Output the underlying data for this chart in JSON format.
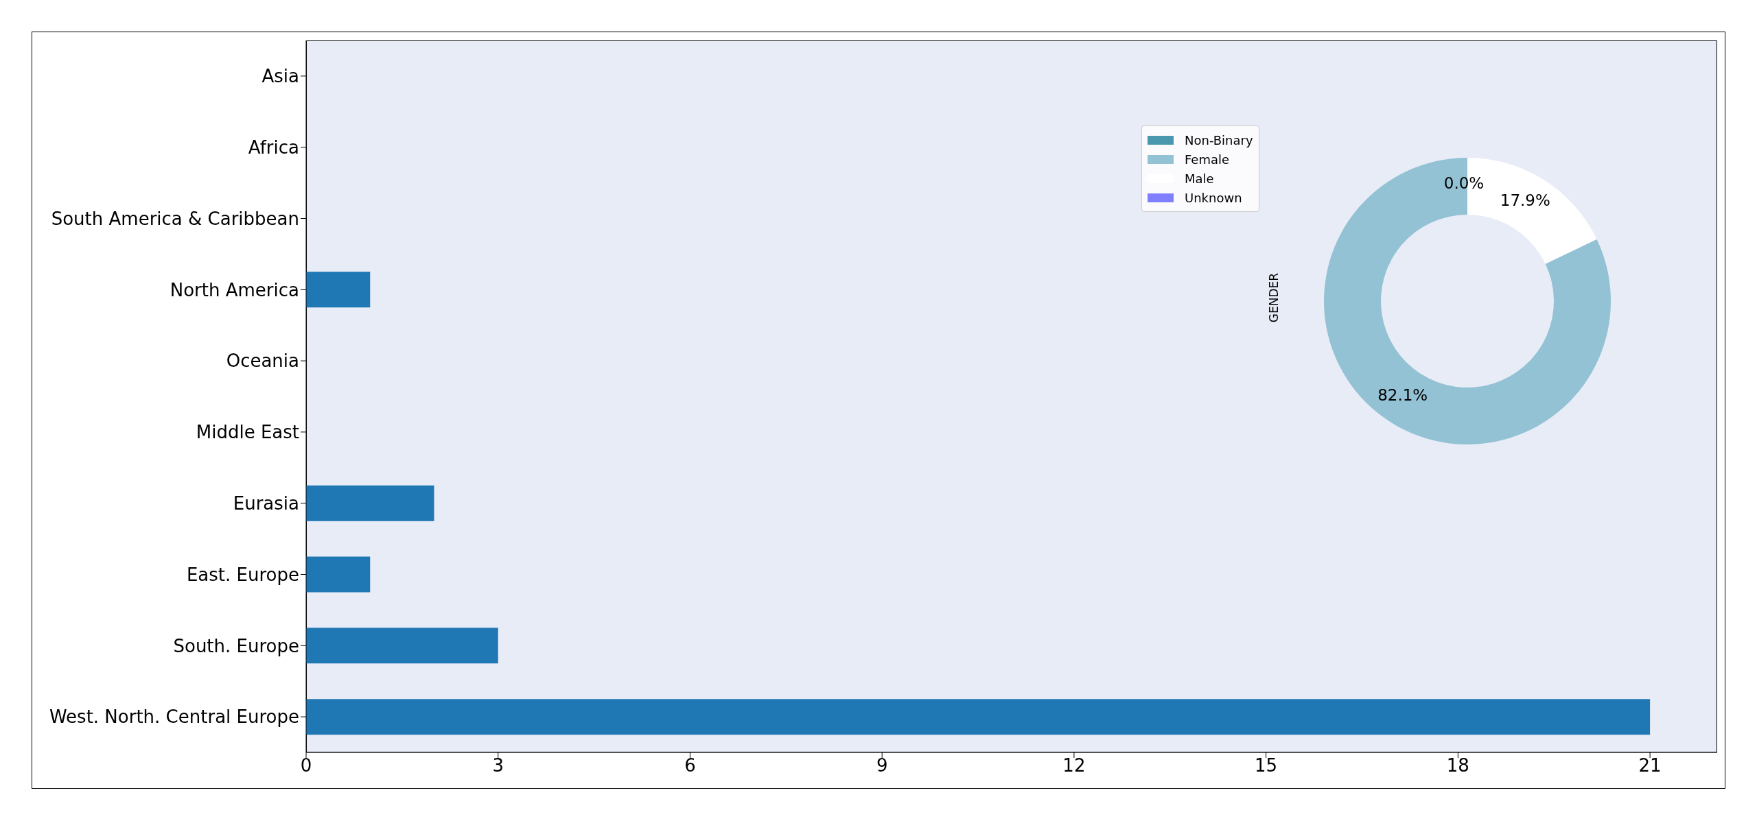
{
  "chart_data": [
    {
      "type": "bar",
      "orientation": "horizontal",
      "categories": [
        "Asia",
        "Africa",
        "South America & Caribbean",
        "North America",
        "Oceania",
        "Middle East",
        "Eurasia",
        "East. Europe",
        "South. Europe",
        "West. North. Central Europe"
      ],
      "values": [
        0,
        0,
        0,
        1,
        0,
        0,
        2,
        1,
        3,
        21
      ],
      "color": "#1f77b4",
      "xlim": [
        0,
        22.05
      ],
      "xticks": [
        0,
        3,
        6,
        9,
        12,
        15,
        18,
        21
      ]
    },
    {
      "type": "donut",
      "ylabel": "GENDER",
      "categories": [
        "Non-Binary",
        "Female",
        "Male",
        "Unknown"
      ],
      "values": [
        0,
        82.1,
        17.9,
        0
      ],
      "colors": [
        "#4a98ae",
        "#93c2d4",
        "#ffffff",
        "#8080ff"
      ],
      "value_labels": [
        "0.0%",
        "82.1%",
        "17.9%",
        null
      ],
      "legend": "top left"
    }
  ]
}
